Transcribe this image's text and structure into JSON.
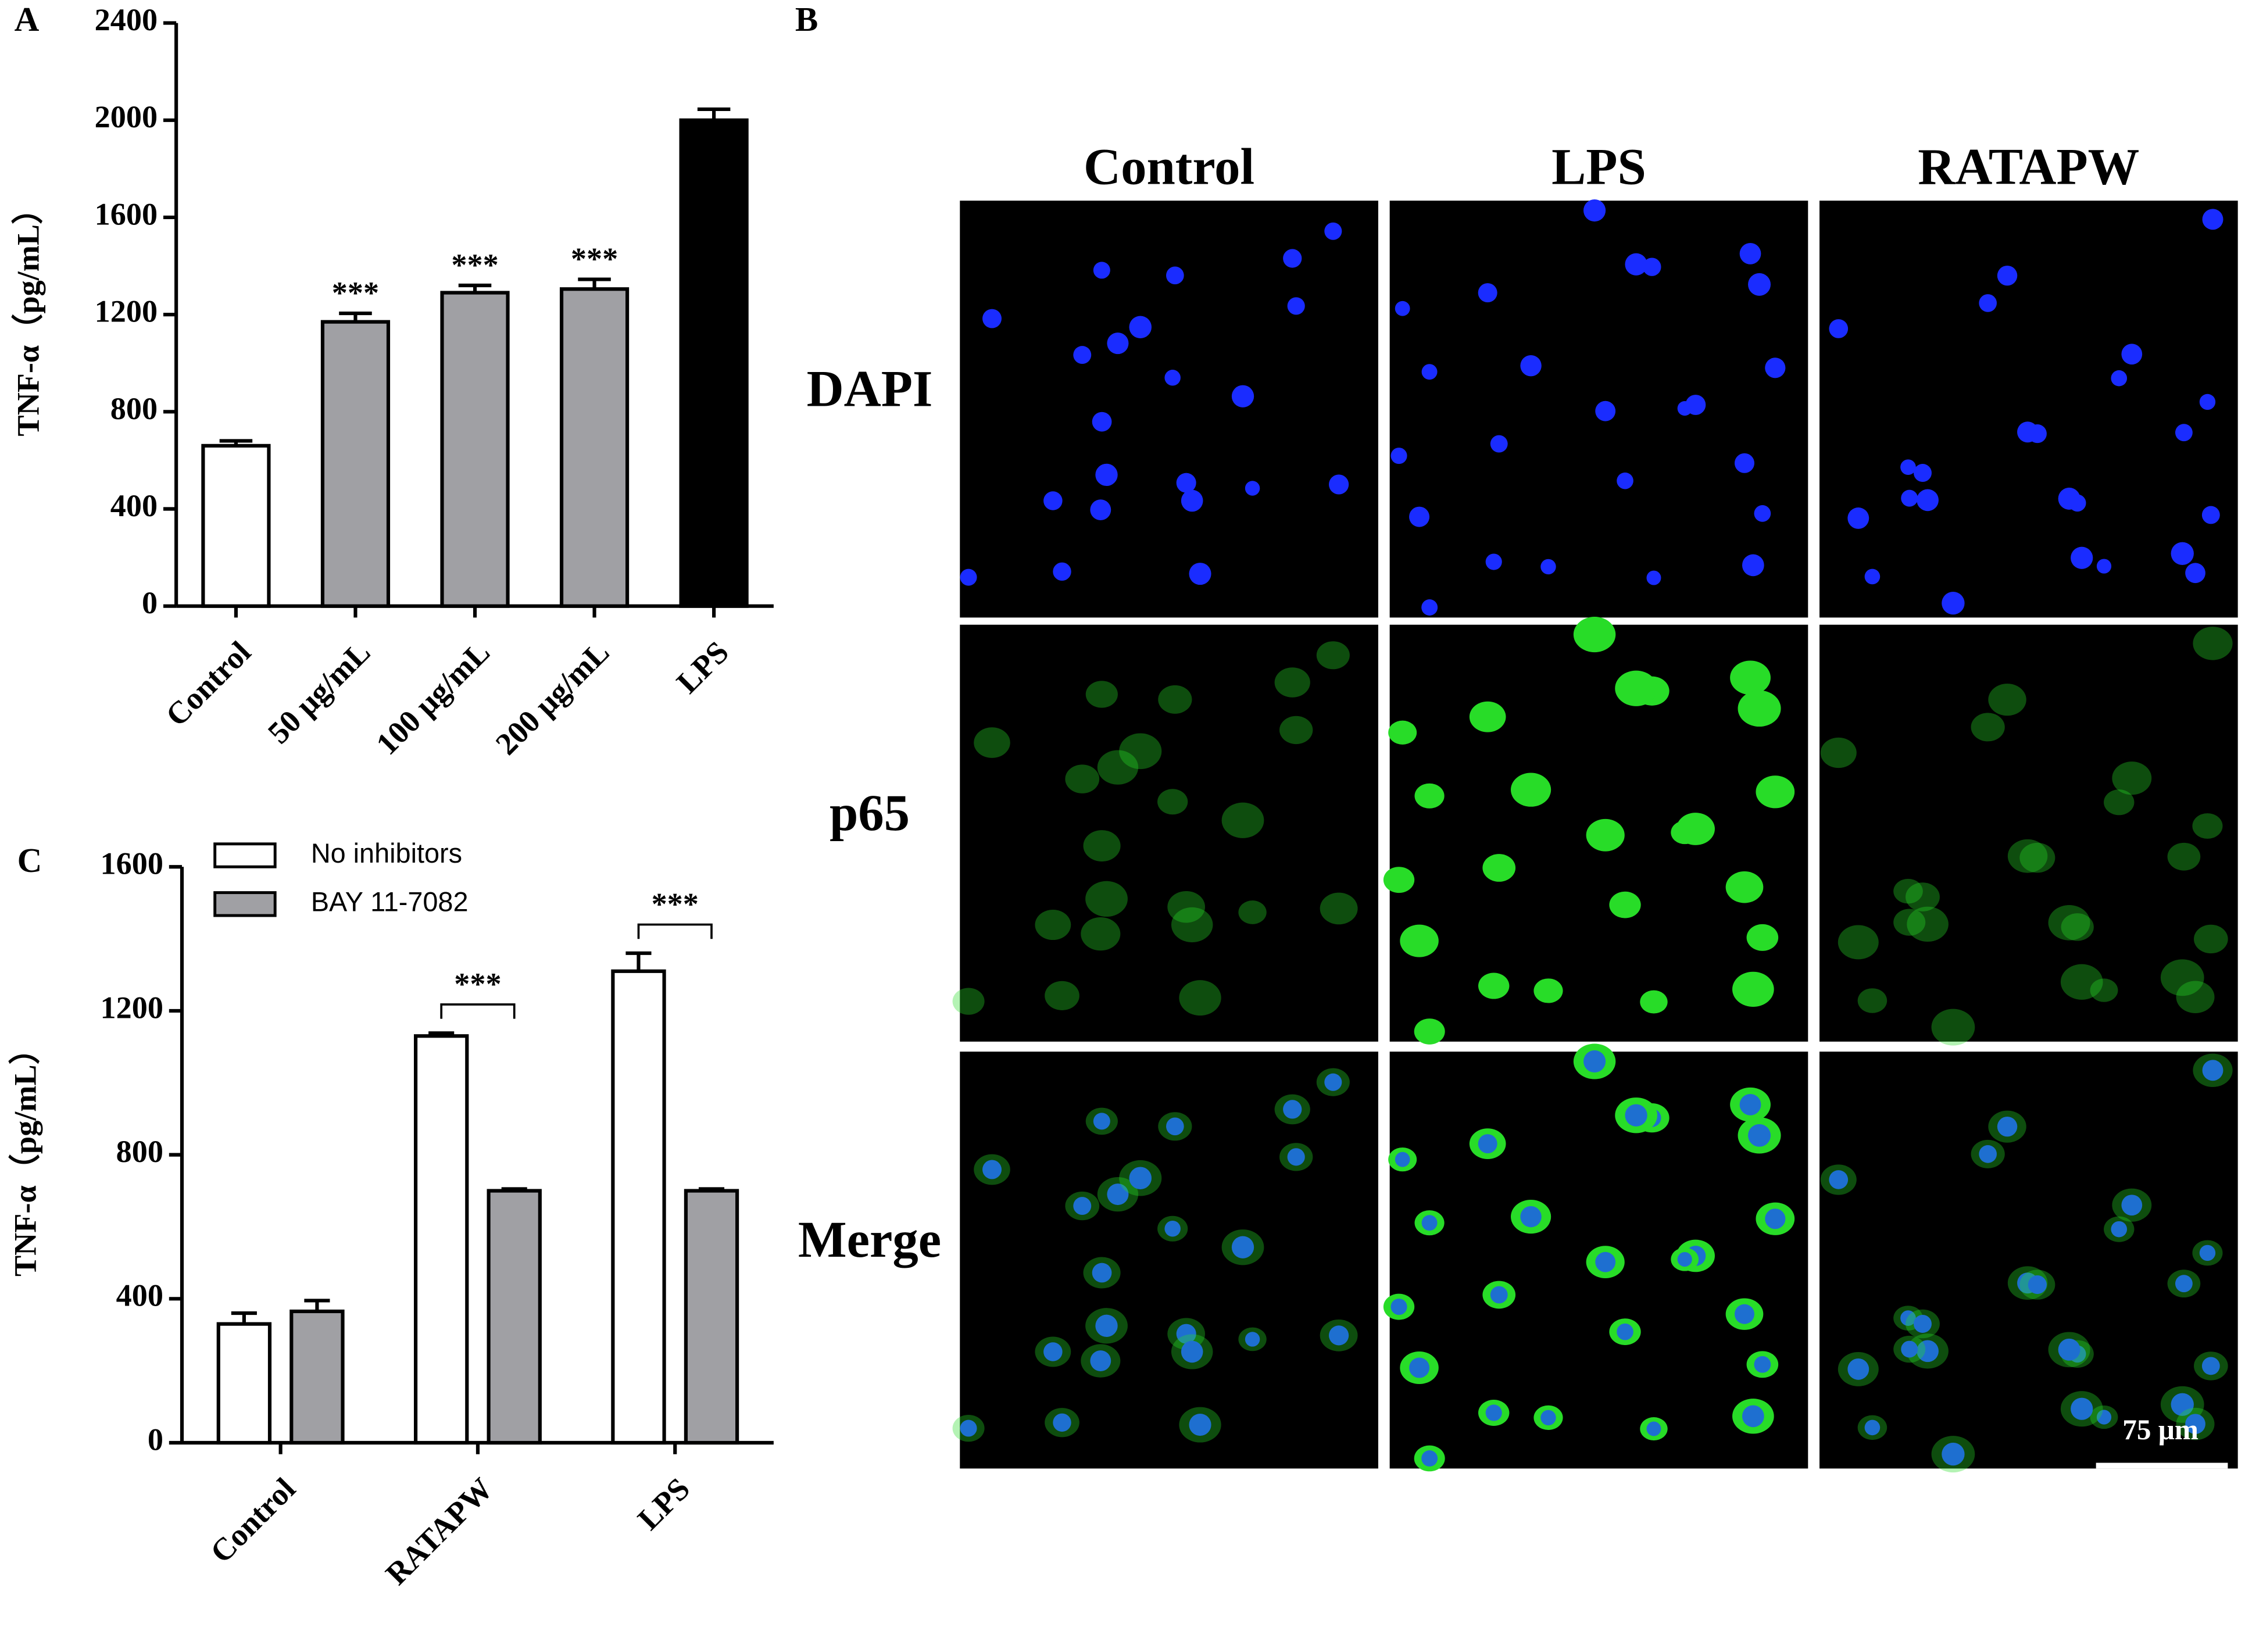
{
  "chart_data": [
    {
      "type": "bar",
      "panel": "A",
      "y_label": "TNF-α（pg/mL）",
      "categories": [
        "Control",
        "50 μg/mL",
        "100 μg/mL",
        "200 μg/mL",
        "LPS"
      ],
      "values": [
        660,
        1170,
        1290,
        1305,
        2000
      ],
      "errors": [
        20,
        35,
        30,
        40,
        45
      ],
      "colors": [
        "#ffffff",
        "#a0a0a4",
        "#a0a0a4",
        "#a0a0a4",
        "#000000"
      ],
      "significance": [
        null,
        "***",
        "***",
        "***",
        null
      ],
      "ylim": [
        0,
        2400
      ],
      "yticks": [
        0,
        400,
        800,
        1200,
        1600,
        2000,
        2400
      ],
      "grid": false
    },
    {
      "type": "bar",
      "panel": "C",
      "y_label": "TNF-α（pg/mL）",
      "categories": [
        "Control",
        "RATAPW",
        "LPS"
      ],
      "series": [
        {
          "name": "No inhibitors",
          "color": "#ffffff",
          "values": [
            330,
            1130,
            1310
          ],
          "errors": [
            30,
            8,
            50
          ]
        },
        {
          "name": "BAY 11-7082",
          "color": "#a0a0a4",
          "values": [
            365,
            700,
            700
          ],
          "errors": [
            30,
            5,
            5
          ]
        }
      ],
      "significance": [
        null,
        "***",
        "***"
      ],
      "legend": "upper left",
      "ylim": [
        0,
        1600
      ],
      "yticks": [
        0,
        400,
        800,
        1200,
        1600
      ],
      "grid": false
    }
  ],
  "figure_b": {
    "panel": "B",
    "columns": [
      "Control",
      "LPS",
      "RATAPW"
    ],
    "rows": [
      "DAPI",
      "p65",
      "Merge"
    ],
    "scale_bar": "75 μm"
  }
}
